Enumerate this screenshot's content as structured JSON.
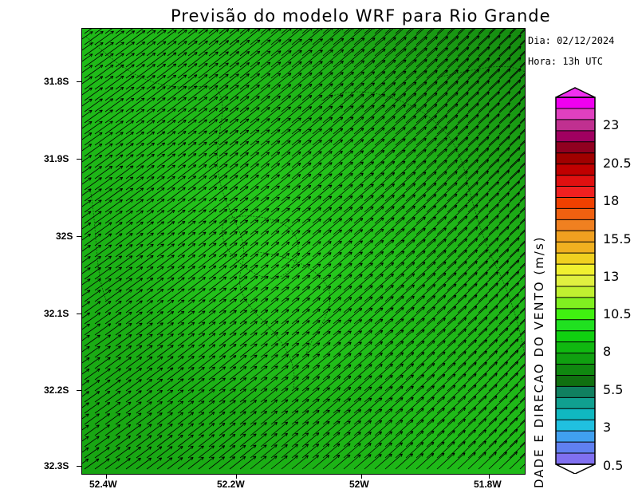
{
  "title": "Previsão do modelo WRF para Rio Grande",
  "date_label": "Dia: 02/12/2024",
  "hour_label": "Hora: 13h UTC",
  "y_axis": {
    "ticks": [
      "31.8S",
      "31.9S",
      "32S",
      "32.1S",
      "32.2S",
      "32.3S"
    ]
  },
  "x_axis": {
    "ticks": [
      "52.4W",
      "52.2W",
      "52W",
      "51.8W"
    ]
  },
  "colorbar": {
    "title": "DADE E DIRECAO DO VENTO (m/s)",
    "labels": [
      "23",
      "20.5",
      "18",
      "15.5",
      "13",
      "10.5",
      "8",
      "5.5",
      "3",
      "0.5"
    ],
    "colors": [
      "#f000f0",
      "#e040c0",
      "#c03090",
      "#a00060",
      "#900020",
      "#a00000",
      "#c00000",
      "#e01010",
      "#f02020",
      "#f04000",
      "#f06010",
      "#f08020",
      "#f0a020",
      "#f0b020",
      "#f0d020",
      "#f0f030",
      "#e0f040",
      "#c0f030",
      "#80f020",
      "#40f010",
      "#20e020",
      "#10d010",
      "#10b810",
      "#10a010",
      "#108810",
      "#107010",
      "#108060",
      "#10a090",
      "#10b8c0",
      "#20c0e0",
      "#40a0f0",
      "#6080f0",
      "#8070f0"
    ],
    "scale_color": "#000000"
  },
  "map": {
    "background": "#1fba16",
    "arrow_color": "#000000",
    "wind_direction": "from southwest"
  }
}
